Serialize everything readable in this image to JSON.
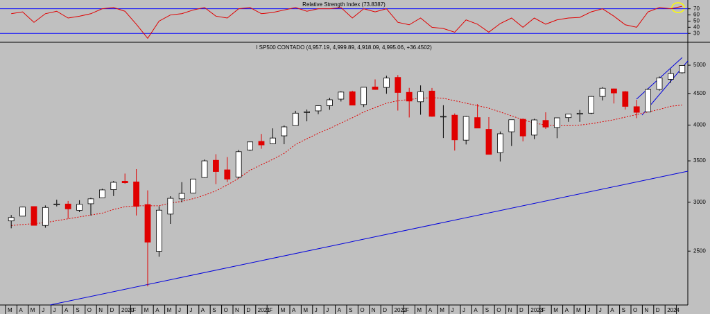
{
  "chart_data": [
    {
      "type": "line",
      "title": "Relative Strength Index (73.8387)",
      "color": "#e00000",
      "values": [
        62,
        65,
        48,
        62,
        66,
        55,
        58,
        62,
        70,
        72,
        66,
        45,
        22,
        50,
        60,
        62,
        68,
        72,
        58,
        55,
        70,
        72,
        62,
        64,
        68,
        72,
        66,
        70,
        70,
        72,
        55,
        70,
        65,
        70,
        48,
        44,
        55,
        40,
        38,
        32,
        52,
        45,
        32,
        46,
        55,
        40,
        55,
        45,
        52,
        55,
        56,
        65,
        70,
        58,
        44,
        40,
        65,
        72,
        70,
        74
      ],
      "ylim": [
        19,
        82
      ],
      "yticks": [
        70,
        60,
        50,
        40,
        30
      ],
      "levels": [
        70,
        30
      ],
      "level_color": "#0000ff"
    },
    {
      "type": "candlestick",
      "title": "I SP500 CONTADO (4,957.19, 4,999.89, 4,918.09, 4,995.06, +36.4502)",
      "categories": [
        "M",
        "A",
        "M",
        "J",
        "J",
        "A",
        "S",
        "O",
        "N",
        "D",
        "2020",
        "F",
        "M",
        "A",
        "M",
        "J",
        "J",
        "A",
        "S",
        "O",
        "N",
        "D",
        "2021",
        "F",
        "M",
        "A",
        "M",
        "J",
        "J",
        "A",
        "S",
        "O",
        "N",
        "D",
        "2022",
        "F",
        "M",
        "A",
        "M",
        "J",
        "J",
        "A",
        "S",
        "O",
        "N",
        "D",
        "2023",
        "F",
        "M",
        "A",
        "M",
        "J",
        "J",
        "A",
        "S",
        "O",
        "N",
        "D",
        "2024",
        null
      ],
      "open": [
        2798,
        2848,
        2952,
        2751,
        2971,
        2980,
        2910,
        2983,
        3050,
        3144,
        3244,
        3236,
        2974,
        2498,
        2870,
        3038,
        3105,
        3289,
        3508,
        3385,
        3296,
        3645,
        3764,
        3731,
        3842,
        3992,
        4191,
        4217,
        4300,
        4406,
        4529,
        4318,
        4610,
        4602,
        4778,
        4519,
        4363,
        4541,
        4131,
        4150,
        3781,
        4113,
        3937,
        3609,
        3901,
        4087,
        3853,
        4070,
        3964,
        4112,
        4166,
        4181,
        4450,
        4578,
        4530,
        4284,
        4201,
        4568,
        4743,
        4862
      ],
      "high": [
        2860,
        2949,
        2954,
        2964,
        3028,
        3014,
        3022,
        3050,
        3154,
        3248,
        3338,
        3394,
        3136,
        2955,
        3068,
        3233,
        3272,
        3518,
        3588,
        3550,
        3646,
        3760,
        3870,
        3951,
        3994,
        4218,
        4238,
        4302,
        4429,
        4537,
        4546,
        4608,
        4743,
        4808,
        4819,
        4595,
        4637,
        4593,
        4307,
        4177,
        4140,
        4325,
        4119,
        3905,
        4080,
        4101,
        4095,
        4195,
        4110,
        4170,
        4231,
        4458,
        4607,
        4584,
        4541,
        4393,
        4587,
        4793,
        4932,
        5000
      ],
      "low": [
        2722,
        2848,
        2751,
        2728,
        2953,
        2822,
        2892,
        2855,
        3050,
        3070,
        3214,
        2855,
        2192,
        2448,
        2767,
        2999,
        3101,
        3284,
        3209,
        3234,
        3280,
        3633,
        3662,
        3725,
        3724,
        3992,
        4056,
        4165,
        4234,
        4367,
        4306,
        4279,
        4561,
        4495,
        4222,
        4115,
        4157,
        4125,
        3811,
        3637,
        3721,
        3955,
        3584,
        3492,
        3699,
        3764,
        3795,
        3943,
        3809,
        4048,
        4048,
        4167,
        4385,
        4335,
        4238,
        4104,
        4201,
        4547,
        4682,
        4845
      ],
      "close": [
        2834,
        2946,
        2752,
        2942,
        2980,
        2926,
        2977,
        3038,
        3141,
        3231,
        3226,
        2954,
        2585,
        2912,
        3044,
        3100,
        3271,
        3500,
        3363,
        3270,
        3622,
        3756,
        3714,
        3811,
        3973,
        4181,
        4204,
        4298,
        4395,
        4523,
        4308,
        4605,
        4567,
        4766,
        4516,
        4374,
        4530,
        4132,
        4132,
        3785,
        4130,
        3955,
        3586,
        3872,
        4080,
        3840,
        4077,
        3970,
        4109,
        4169,
        4180,
        4450,
        4589,
        4508,
        4288,
        4194,
        4568,
        4770,
        4846,
        4995
      ],
      "up_color": "#ffffff",
      "down_color": "#e00000",
      "moving_average": {
        "color": "#e00000",
        "values": [
          2750,
          2760,
          2770,
          2780,
          2800,
          2820,
          2840,
          2860,
          2880,
          2920,
          2950,
          2960,
          2960,
          2960,
          2990,
          3010,
          3040,
          3080,
          3130,
          3200,
          3280,
          3380,
          3450,
          3520,
          3600,
          3720,
          3800,
          3880,
          3950,
          4030,
          4110,
          4200,
          4270,
          4340,
          4380,
          4400,
          4420,
          4430,
          4420,
          4380,
          4340,
          4300,
          4260,
          4200,
          4140,
          4080,
          4030,
          4000,
          3990,
          3990,
          4000,
          4020,
          4050,
          4080,
          4120,
          4160,
          4200,
          4240,
          4290,
          4310
        ]
      },
      "log_scale": true,
      "ylim": [
        2045,
        5390
      ],
      "yticks": [
        2500,
        3000,
        3500,
        4000,
        4500,
        5000
      ]
    }
  ]
}
